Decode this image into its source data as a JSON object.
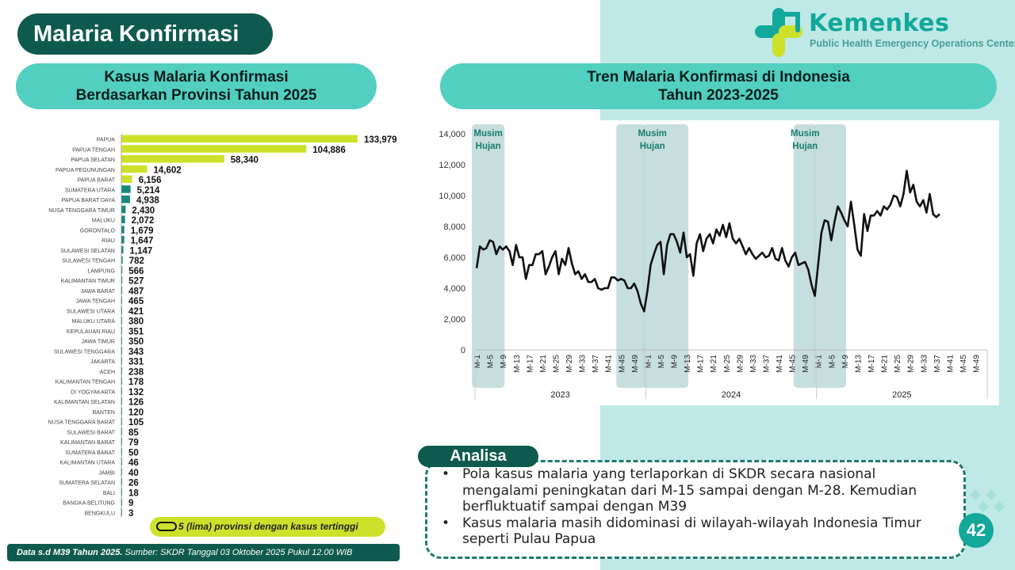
{
  "slide": {
    "title": "Malaria Konfirmasi",
    "page_number": "42"
  },
  "logo": {
    "name": "Kemenkes",
    "subtitle": "Public Health Emergency Operations Center"
  },
  "left_panel": {
    "title_line1": "Kasus Malaria Konfirmasi",
    "title_line2": "Berdasarkan Provinsi Tahun 2025",
    "legend_text": "5 (lima) provinsi dengan kasus tertinggi",
    "footer_bold": "Data s.d M39 Tahun 2025.",
    "footer_text": " Sumber: SKDR Tanggal 03 Oktober 2025 Pukul 12.00 WIB"
  },
  "right_panel": {
    "title_line1": "Tren Malaria Konfirmasi di Indonesia",
    "title_line2": "Tahun 2023-2025"
  },
  "analysis": {
    "label": "Analisa",
    "bullets": [
      "Pola kasus malaria yang terlaporkan di SKDR secara nasional mengalami peningkatan dari M-15 sampai dengan M-28. Kemudian berfluktuatif sampai dengan M39",
      "Kasus malaria masih didominasi di wilayah-wilayah Indonesia Timur seperti Pulau Papua"
    ]
  },
  "colors": {
    "dark_teal": "#0f5a4e",
    "header_teal": "#52cfc0",
    "top5_bar": "#cde12b",
    "other_bar": "#16877b",
    "rain_band": "#bcd9d8",
    "line": "#111111"
  },
  "chart_data": [
    {
      "type": "bar",
      "orientation": "horizontal",
      "categories": [
        "PAPUA",
        "PAPUA TENGAH",
        "PAPUA SELATAN",
        "PAPUA PEGUNUNGAN",
        "PAPUA BARAT",
        "SUMATERA UTARA",
        "PAPUA BARAT DAYA",
        "NUSA TENGGARA TIMUR",
        "MALUKU",
        "GORONTALO",
        "RIAU",
        "SULAWESI SELATAN",
        "SULAWESI TENGAH",
        "LAMPUNG",
        "KALIMANTAN TIMUR",
        "JAWA BARAT",
        "JAWA TENGAH",
        "SULAWESI UTARA",
        "MALUKU UTARA",
        "KEPULAUAN RIAU",
        "JAWA TIMUR",
        "SULAWESI TENGGARA",
        "JAKARTA",
        "ACEH",
        "KALIMANTAN TENGAH",
        "DI YOGYAKARTA",
        "KALIMANTAN SELATAN",
        "BANTEN",
        "NUSA TENGGARA BARAT",
        "SULAWESI BARAT",
        "KALIMANTAN BARAT",
        "SUMATERA BARAT",
        "KALIMANTAN UTARA",
        "JAMBI",
        "SUMATERA SELATAN",
        "BALI",
        "BANGKA BELITUNG",
        "BENGKULU"
      ],
      "values": [
        133979,
        104886,
        58340,
        14602,
        6156,
        5214,
        4938,
        2430,
        2072,
        1679,
        1647,
        1147,
        782,
        566,
        527,
        487,
        465,
        421,
        380,
        351,
        350,
        343,
        331,
        238,
        178,
        132,
        126,
        120,
        105,
        85,
        79,
        50,
        46,
        40,
        26,
        18,
        9,
        3
      ],
      "value_labels": [
        "133,979",
        "104,886",
        "58,340",
        "14,602",
        "6,156",
        "5,214",
        "4,938",
        "2,430",
        "2,072",
        "1,679",
        "1,647",
        "1,147",
        "782",
        "566",
        "527",
        "487",
        "465",
        "421",
        "380",
        "351",
        "350",
        "343",
        "331",
        "238",
        "178",
        "132",
        "126",
        "120",
        "105",
        "85",
        "79",
        "50",
        "46",
        "40",
        "26",
        "18",
        "9",
        "3"
      ],
      "highlight_top": 5
    },
    {
      "type": "line",
      "years": [
        "2023",
        "2024",
        "2025"
      ],
      "week_ticks": [
        "M-1",
        "M-5",
        "M-9",
        "M-13",
        "M-17",
        "M-21",
        "M-25",
        "M-29",
        "M-33",
        "M-37",
        "M-41",
        "M-45",
        "M-49"
      ],
      "y_ticks": [
        "0",
        "2,000",
        "4,000",
        "6,000",
        "8,000",
        "10,000",
        "12,000",
        "14,000"
      ],
      "ylim": [
        0,
        14000
      ],
      "band_label": "Musim Hujan",
      "rain_bands": [
        {
          "year": "2023",
          "from_week": 1,
          "to_week": 9
        },
        {
          "year": "2023",
          "from_week": 45,
          "to_week": 52
        },
        {
          "year": "2024",
          "from_week": 1,
          "to_week": 13
        },
        {
          "year": "2024",
          "from_week": 47,
          "to_week": 52
        },
        {
          "year": "2025",
          "from_week": 1,
          "to_week": 9
        }
      ],
      "series": [
        {
          "values_2023": [
            5300,
            6700,
            6500,
            6600,
            7100,
            7000,
            6200,
            6700,
            6500,
            6700,
            6400,
            5500,
            6800,
            6000,
            6000,
            4600,
            5500,
            5500,
            6200,
            6200,
            6400,
            4900,
            5400,
            6000,
            6400,
            4900,
            5900,
            5500,
            6600,
            5600,
            4900,
            5100,
            4600,
            4900,
            4400,
            4400,
            4600,
            4000,
            3900,
            4000,
            4000,
            4700,
            4700,
            4500,
            4600,
            4500,
            4000,
            4000,
            4300,
            3800,
            3000,
            2500
          ],
          "values_2024": [
            3800,
            5500,
            6200,
            6800,
            7000,
            4900,
            6800,
            7500,
            7500,
            7000,
            6300,
            7600,
            6000,
            6200,
            4800,
            6900,
            7500,
            6400,
            7200,
            7500,
            6900,
            7800,
            7400,
            8100,
            7300,
            8200,
            7200,
            6900,
            7200,
            6700,
            6200,
            6600,
            6200,
            5900,
            6100,
            6300,
            6000,
            6100,
            6600,
            5900,
            5800,
            6600,
            5800,
            5400,
            6000,
            6300,
            5500,
            5600,
            5700,
            5200,
            4200,
            3500
          ],
          "values_2025": [
            5500,
            7600,
            8400,
            8300,
            7100,
            8300,
            9300,
            8900,
            8400,
            8000,
            9600,
            8100,
            6500,
            6100,
            8800,
            7700,
            8700,
            8700,
            9000,
            8700,
            9300,
            9100,
            9400,
            10000,
            9900,
            9300,
            10100,
            11600,
            10200,
            10700,
            9600,
            9300,
            9700,
            8900,
            10100,
            8800,
            8600,
            8800
          ]
        }
      ]
    }
  ]
}
